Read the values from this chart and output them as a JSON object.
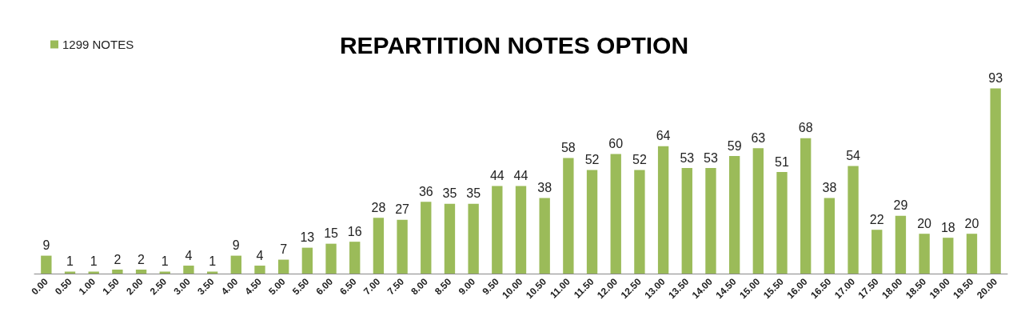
{
  "chart_data": {
    "type": "bar",
    "title": "REPARTITION NOTES OPTION",
    "categories": [
      "0.00",
      "0.50",
      "1.00",
      "1.50",
      "2.00",
      "2.50",
      "3.00",
      "3.50",
      "4.00",
      "4.50",
      "5.00",
      "5.50",
      "6.00",
      "6.50",
      "7.00",
      "7.50",
      "8.00",
      "8.50",
      "9.00",
      "9.50",
      "10.00",
      "10.50",
      "11.00",
      "11.50",
      "12.00",
      "12.50",
      "13.00",
      "13.50",
      "14.00",
      "14.50",
      "15.00",
      "15.50",
      "16.00",
      "16.50",
      "17.00",
      "17.50",
      "18.00",
      "18.50",
      "19.00",
      "19.50",
      "20.00"
    ],
    "series": [
      {
        "name": "1299 NOTES",
        "color": "#9bbb59",
        "values": [
          9,
          1,
          1,
          2,
          2,
          1,
          4,
          1,
          9,
          4,
          7,
          13,
          15,
          16,
          28,
          27,
          36,
          35,
          35,
          44,
          44,
          38,
          58,
          52,
          60,
          52,
          64,
          53,
          53,
          59,
          63,
          51,
          68,
          38,
          54,
          22,
          29,
          20,
          18,
          20,
          93
        ]
      }
    ],
    "data_labels": true,
    "legend": "top left"
  }
}
